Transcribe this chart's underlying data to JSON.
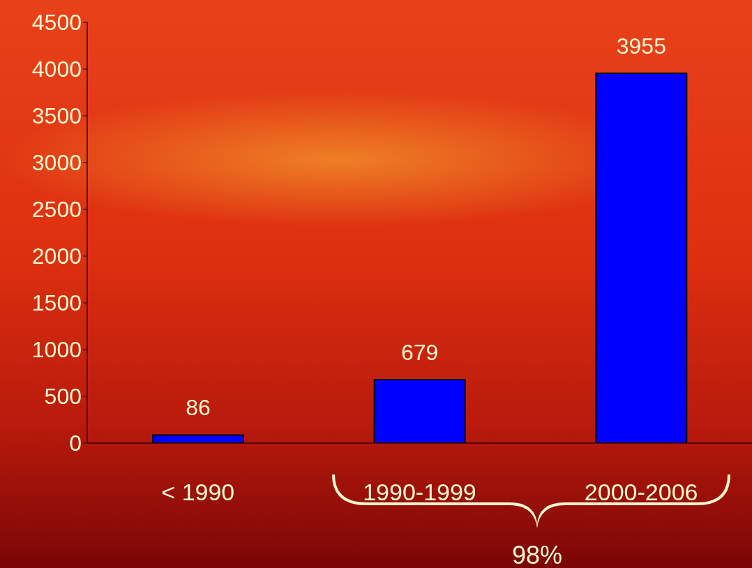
{
  "chart_data": {
    "type": "bar",
    "categories": [
      "< 1990",
      "1990-1999",
      "2000-2006"
    ],
    "values": [
      86,
      679,
      3955
    ],
    "color": "#0000ff",
    "ylim": [
      0,
      4500
    ],
    "yticks": [
      0,
      500,
      1000,
      1500,
      2000,
      2500,
      3000,
      3500,
      4000,
      4500
    ],
    "data_labels": true,
    "annotations": [
      "98%"
    ]
  }
}
